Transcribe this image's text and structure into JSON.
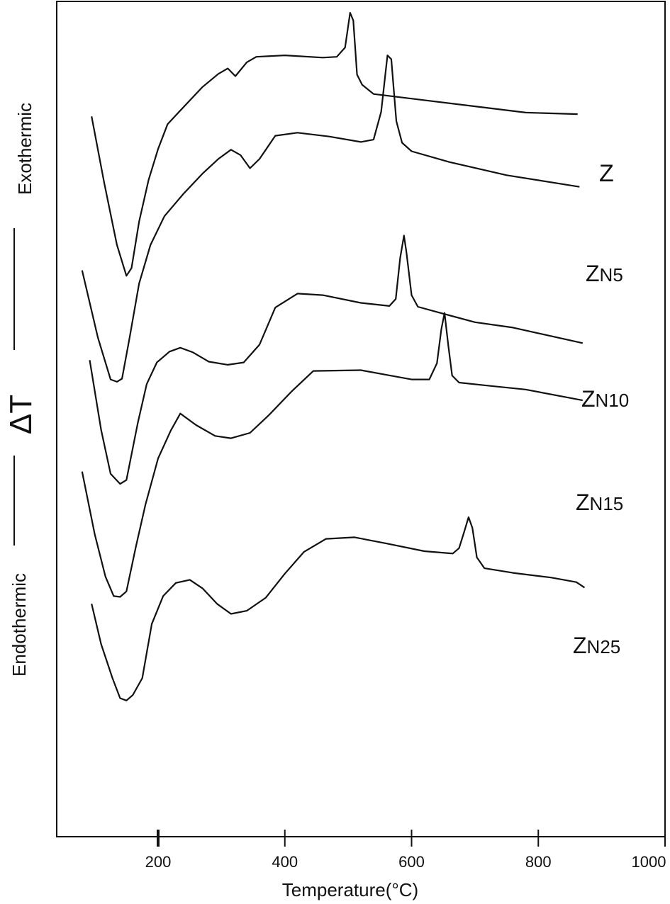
{
  "chart_data": {
    "type": "line",
    "xlabel": "Temperature(°C)",
    "ylabel_top": "Exothermic",
    "ylabel_middle": "ΔT",
    "ylabel_bottom": "Endothermic",
    "xlim": [
      40,
      1000
    ],
    "ylim": [
      0,
      1000
    ],
    "x_ticks": [
      200,
      400,
      600,
      800,
      1000
    ],
    "x_tick_labels": [
      "200",
      "400",
      "600",
      "800",
      "1000"
    ],
    "grid": false,
    "legend": "labels next to curves",
    "series": [
      {
        "name": "Z",
        "label_parts": [
          "Z",
          ""
        ],
        "points": [
          [
            95,
            866
          ],
          [
            115,
            780
          ],
          [
            135,
            700
          ],
          [
            150,
            660
          ],
          [
            158,
            670
          ],
          [
            170,
            730
          ],
          [
            185,
            784
          ],
          [
            200,
            824
          ],
          [
            215,
            856
          ],
          [
            240,
            878
          ],
          [
            270,
            904
          ],
          [
            295,
            921
          ],
          [
            310,
            928
          ],
          [
            322,
            918
          ],
          [
            340,
            936
          ],
          [
            355,
            943
          ],
          [
            400,
            945
          ],
          [
            460,
            942
          ],
          [
            482,
            943
          ],
          [
            495,
            955
          ],
          [
            503,
            1000
          ],
          [
            508,
            990
          ],
          [
            514,
            920
          ],
          [
            522,
            907
          ],
          [
            540,
            895
          ],
          [
            610,
            888
          ],
          [
            700,
            879
          ],
          [
            780,
            871
          ],
          [
            862,
            869
          ]
        ]
      },
      {
        "name": "ZN5",
        "label_parts": [
          "Z",
          "N5"
        ],
        "points": [
          [
            80,
            667
          ],
          [
            105,
            580
          ],
          [
            125,
            526
          ],
          [
            135,
            523
          ],
          [
            143,
            527
          ],
          [
            155,
            580
          ],
          [
            170,
            650
          ],
          [
            188,
            700
          ],
          [
            210,
            737
          ],
          [
            240,
            766
          ],
          [
            270,
            792
          ],
          [
            295,
            811
          ],
          [
            315,
            823
          ],
          [
            330,
            816
          ],
          [
            345,
            799
          ],
          [
            360,
            811
          ],
          [
            385,
            841
          ],
          [
            420,
            845
          ],
          [
            470,
            840
          ],
          [
            520,
            833
          ],
          [
            540,
            836
          ],
          [
            552,
            872
          ],
          [
            562,
            945
          ],
          [
            568,
            940
          ],
          [
            576,
            860
          ],
          [
            585,
            832
          ],
          [
            600,
            821
          ],
          [
            660,
            807
          ],
          [
            750,
            790
          ],
          [
            865,
            775
          ]
        ]
      },
      {
        "name": "ZN10",
        "label_parts": [
          "Z",
          "N10"
        ],
        "points": [
          [
            92,
            551
          ],
          [
            110,
            461
          ],
          [
            125,
            404
          ],
          [
            140,
            391
          ],
          [
            150,
            396
          ],
          [
            168,
            470
          ],
          [
            182,
            520
          ],
          [
            198,
            548
          ],
          [
            218,
            562
          ],
          [
            235,
            567
          ],
          [
            255,
            561
          ],
          [
            280,
            549
          ],
          [
            310,
            545
          ],
          [
            335,
            548
          ],
          [
            360,
            571
          ],
          [
            385,
            619
          ],
          [
            420,
            637
          ],
          [
            460,
            635
          ],
          [
            520,
            625
          ],
          [
            565,
            621
          ],
          [
            575,
            630
          ],
          [
            582,
            683
          ],
          [
            588,
            712
          ],
          [
            592,
            690
          ],
          [
            600,
            635
          ],
          [
            610,
            620
          ],
          [
            650,
            611
          ],
          [
            700,
            600
          ],
          [
            760,
            593
          ],
          [
            870,
            573
          ]
        ]
      },
      {
        "name": "ZN15",
        "label_parts": [
          "Z",
          "N15"
        ],
        "points": [
          [
            80,
            407
          ],
          [
            100,
            326
          ],
          [
            117,
            271
          ],
          [
            130,
            246
          ],
          [
            140,
            245
          ],
          [
            150,
            252
          ],
          [
            165,
            310
          ],
          [
            180,
            364
          ],
          [
            200,
            424
          ],
          [
            220,
            460
          ],
          [
            235,
            482
          ],
          [
            260,
            467
          ],
          [
            290,
            453
          ],
          [
            315,
            450
          ],
          [
            345,
            457
          ],
          [
            375,
            480
          ],
          [
            410,
            510
          ],
          [
            445,
            537
          ],
          [
            520,
            538
          ],
          [
            560,
            532
          ],
          [
            600,
            526
          ],
          [
            628,
            526
          ],
          [
            640,
            547
          ],
          [
            647,
            591
          ],
          [
            652,
            612
          ],
          [
            658,
            570
          ],
          [
            664,
            531
          ],
          [
            675,
            522
          ],
          [
            720,
            518
          ],
          [
            780,
            513
          ],
          [
            870,
            499
          ]
        ]
      },
      {
        "name": "ZN25",
        "label_parts": [
          "Z",
          "N25"
        ],
        "points": [
          [
            95,
            236
          ],
          [
            110,
            184
          ],
          [
            128,
            140
          ],
          [
            140,
            114
          ],
          [
            150,
            111
          ],
          [
            160,
            118
          ],
          [
            175,
            140
          ],
          [
            190,
            210
          ],
          [
            208,
            246
          ],
          [
            228,
            263
          ],
          [
            250,
            267
          ],
          [
            270,
            256
          ],
          [
            293,
            236
          ],
          [
            315,
            223
          ],
          [
            340,
            227
          ],
          [
            370,
            244
          ],
          [
            400,
            275
          ],
          [
            430,
            303
          ],
          [
            465,
            320
          ],
          [
            510,
            322
          ],
          [
            560,
            314
          ],
          [
            620,
            304
          ],
          [
            665,
            301
          ],
          [
            675,
            308
          ],
          [
            683,
            329
          ],
          [
            690,
            348
          ],
          [
            696,
            334
          ],
          [
            703,
            296
          ],
          [
            715,
            282
          ],
          [
            760,
            276
          ],
          [
            820,
            270
          ],
          [
            860,
            264
          ],
          [
            873,
            257
          ]
        ]
      }
    ]
  }
}
